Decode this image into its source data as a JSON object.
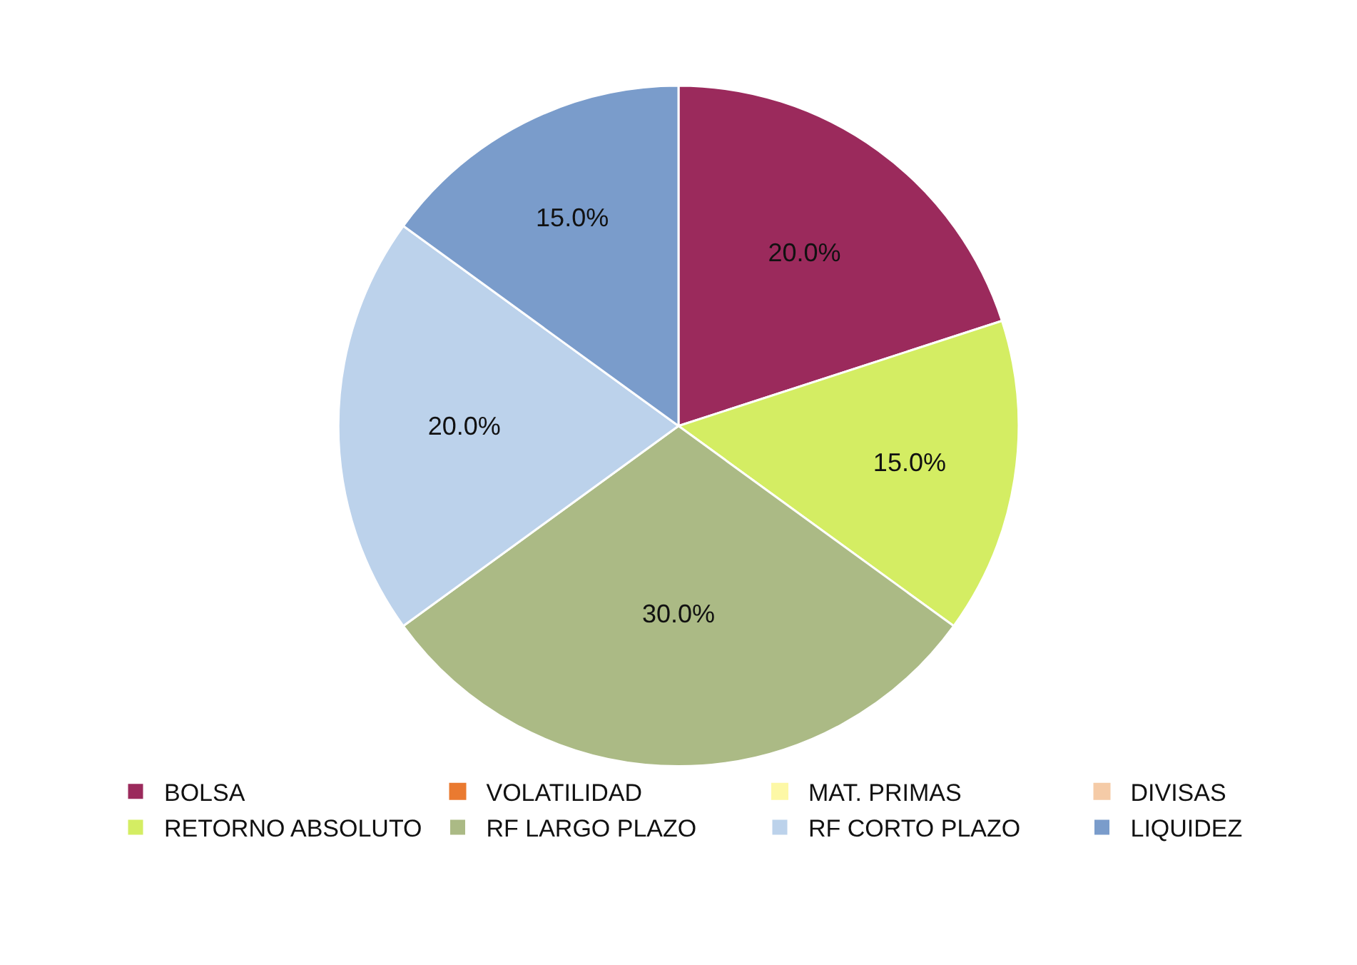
{
  "chart_data": {
    "type": "pie",
    "categories": [
      "BOLSA",
      "VOLATILIDAD",
      "MAT. PRIMAS",
      "DIVISAS",
      "RETORNO ABSOLUTO",
      "RF LARGO PLAZO",
      "RF CORTO PLAZO",
      "LIQUIDEZ"
    ],
    "values": [
      20,
      0,
      0,
      0,
      15,
      30,
      20,
      15
    ],
    "value_labels": [
      "20.0%",
      null,
      null,
      null,
      "15.0%",
      "30.0%",
      "20.0%",
      "15.0%"
    ],
    "colors": [
      "#9b2a5c",
      "#ea7a30",
      "#fdf8a6",
      "#f5cba7",
      "#d4ed63",
      "#abba85",
      "#bcd2eb",
      "#7a9ccb"
    ],
    "legend": "bottom"
  }
}
